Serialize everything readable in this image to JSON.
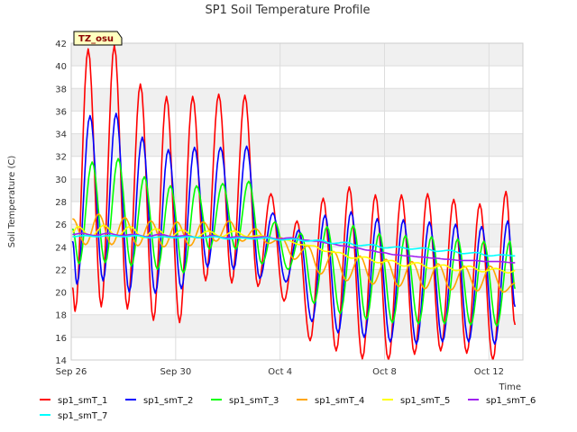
{
  "chart_data": {
    "type": "line",
    "title": "SP1 Soil Temperature Profile",
    "xlabel": "Time",
    "ylabel": "Soil Temperature (C)",
    "site_badge": "TZ_osu",
    "xlim": [
      0,
      17.3
    ],
    "ylim": [
      14,
      42
    ],
    "yticks": [
      14,
      16,
      18,
      20,
      22,
      24,
      26,
      28,
      30,
      32,
      34,
      36,
      38,
      40,
      42
    ],
    "xticks": [
      {
        "value": 0,
        "label": "Sep 26"
      },
      {
        "value": 4,
        "label": "Sep 30"
      },
      {
        "value": 8,
        "label": "Oct 4"
      },
      {
        "value": 12,
        "label": "Oct 8"
      },
      {
        "value": 16,
        "label": "Oct 12"
      }
    ],
    "x_start": 0.05,
    "x_end": 17.0,
    "series": [
      {
        "name": "sp1_smT_1",
        "color": "#ff0000",
        "daily_max": [
          41.5,
          41.8,
          38.4,
          37.3,
          37.3,
          37.5,
          37.4,
          28.7,
          26.3,
          28.3,
          29.3,
          28.6,
          28.6,
          28.7,
          28.2,
          27.8,
          28.9
        ],
        "daily_min": [
          18.3,
          18.7,
          18.5,
          17.5,
          17.3,
          21.0,
          20.8,
          20.5,
          19.2,
          15.7,
          14.8,
          14.1,
          14.0,
          14.5,
          14.8,
          14.6,
          14.0
        ],
        "peak_phase": 0.65,
        "start": 20.4,
        "end": 17.1
      },
      {
        "name": "sp1_smT_2",
        "color": "#0000ff",
        "daily_max": [
          35.6,
          35.8,
          33.7,
          32.6,
          32.8,
          32.8,
          32.9,
          27.0,
          25.5,
          26.8,
          27.1,
          26.5,
          26.4,
          26.2,
          26.0,
          25.8,
          26.3
        ],
        "daily_min": [
          20.7,
          21.0,
          20.0,
          19.9,
          20.3,
          22.2,
          22.0,
          21.2,
          20.9,
          17.4,
          16.4,
          16.0,
          15.6,
          15.4,
          15.6,
          15.6,
          15.4
        ],
        "peak_phase": 0.72,
        "start": 24.5,
        "end": 18.7
      },
      {
        "name": "sp1_smT_3",
        "color": "#00ff00",
        "daily_max": [
          31.5,
          31.8,
          30.2,
          29.4,
          29.4,
          29.6,
          29.8,
          26.2,
          25.2,
          25.8,
          25.9,
          25.2,
          25.0,
          24.9,
          24.7,
          24.5,
          24.5
        ],
        "daily_min": [
          22.5,
          22.6,
          22.3,
          22.0,
          21.7,
          23.8,
          23.8,
          22.5,
          22.0,
          19.0,
          18.1,
          17.6,
          17.3,
          17.2,
          17.2,
          17.1,
          17.0
        ],
        "peak_phase": 0.8,
        "start": 25.6,
        "end": 20.3
      },
      {
        "name": "sp1_smT_4",
        "color": "#ffa500",
        "daily_max": [
          26.9,
          26.9,
          26.6,
          26.3,
          26.2,
          26.2,
          26.3,
          25.6,
          24.8,
          24.1,
          23.6,
          23.2,
          22.9,
          22.7,
          22.5,
          22.3,
          22.3
        ],
        "daily_min": [
          24.2,
          24.2,
          24.1,
          24.0,
          24.1,
          24.5,
          24.5,
          24.3,
          22.9,
          21.6,
          21.0,
          20.7,
          20.5,
          20.3,
          20.2,
          20.1,
          20.0
        ],
        "peak_phase": 0.05,
        "start": 26.5,
        "end": 20.8
      },
      {
        "name": "sp1_smT_5",
        "color": "#ffff00",
        "daily_max": [
          25.8,
          25.9,
          25.8,
          25.6,
          25.5,
          25.4,
          25.4,
          25.0,
          24.6,
          24.1,
          23.5,
          23.1,
          22.8,
          22.6,
          22.4,
          22.3,
          22.1
        ],
        "daily_min": [
          24.9,
          24.9,
          24.8,
          24.8,
          24.8,
          24.9,
          24.9,
          24.7,
          24.2,
          23.6,
          23.0,
          22.6,
          22.3,
          22.1,
          21.9,
          21.8,
          21.7
        ],
        "peak_phase": 0.25,
        "start": 25.3,
        "end": 21.9
      },
      {
        "name": "sp1_smT_6",
        "color": "#a020f0",
        "daily_max": [
          25.2,
          25.2,
          25.1,
          25.1,
          25.0,
          25.0,
          24.9,
          24.9,
          24.8,
          24.5,
          24.1,
          23.7,
          23.3,
          23.1,
          22.9,
          22.8,
          22.7
        ],
        "daily_min": [
          25.0,
          25.0,
          24.9,
          24.9,
          24.8,
          24.8,
          24.8,
          24.7,
          24.6,
          24.3,
          23.9,
          23.5,
          23.2,
          23.0,
          22.8,
          22.7,
          22.6
        ],
        "peak_phase": 0.4,
        "start": 25.1,
        "end": 22.6
      },
      {
        "name": "sp1_smT_7",
        "color": "#00ffff",
        "daily_max": [
          25.0,
          25.0,
          25.0,
          24.9,
          24.9,
          24.9,
          24.8,
          24.8,
          24.7,
          24.6,
          24.4,
          24.2,
          24.0,
          23.9,
          23.7,
          23.5,
          23.3
        ],
        "daily_min": [
          24.9,
          24.9,
          24.9,
          24.8,
          24.8,
          24.8,
          24.7,
          24.7,
          24.6,
          24.5,
          24.3,
          24.1,
          23.9,
          23.8,
          23.6,
          23.4,
          23.2
        ],
        "peak_phase": 0.5,
        "start": 24.9,
        "end": 23.2
      }
    ]
  }
}
